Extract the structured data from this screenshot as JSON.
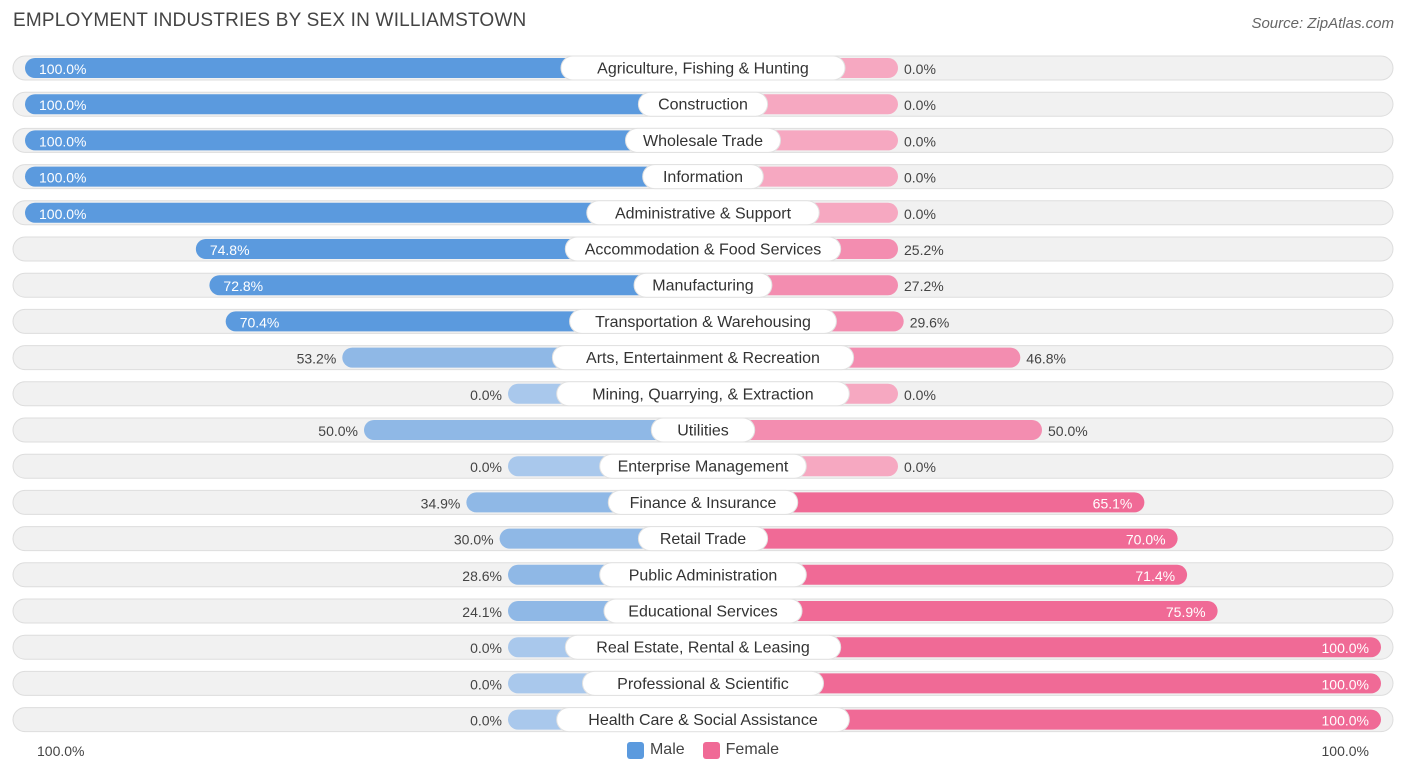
{
  "title": "EMPLOYMENT INDUSTRIES BY SEX IN WILLIAMSTOWN",
  "source": "Source: ZipAtlas.com",
  "colors": {
    "male_strong": "#5b9ade",
    "male_light": "#a9c8ec",
    "female_strong": "#f06a96",
    "female_light": "#f6a8c1",
    "row_bg": "#f1f1f1",
    "row_border": "#dddddd"
  },
  "axis": {
    "left_label": "100.0%",
    "right_label": "100.0%"
  },
  "legend": {
    "male_label": "Male",
    "female_label": "Female"
  },
  "chart_data": {
    "type": "bar",
    "orientation": "horizontal-diverging",
    "title": "EMPLOYMENT INDUSTRIES BY SEX IN WILLIAMSTOWN",
    "xlim": [
      -100,
      100
    ],
    "categories": [
      "Agriculture, Fishing & Hunting",
      "Construction",
      "Wholesale Trade",
      "Information",
      "Administrative & Support",
      "Accommodation & Food Services",
      "Manufacturing",
      "Transportation & Warehousing",
      "Arts, Entertainment & Recreation",
      "Mining, Quarrying, & Extraction",
      "Utilities",
      "Enterprise Management",
      "Finance & Insurance",
      "Retail Trade",
      "Public Administration",
      "Educational Services",
      "Real Estate, Rental & Leasing",
      "Professional & Scientific",
      "Health Care & Social Assistance"
    ],
    "series": [
      {
        "name": "Male",
        "values": [
          100.0,
          100.0,
          100.0,
          100.0,
          100.0,
          74.8,
          72.8,
          70.4,
          53.2,
          0.0,
          50.0,
          0.0,
          34.9,
          30.0,
          28.6,
          24.1,
          0.0,
          0.0,
          0.0
        ],
        "labels": [
          "100.0%",
          "100.0%",
          "100.0%",
          "100.0%",
          "100.0%",
          "74.8%",
          "72.8%",
          "70.4%",
          "53.2%",
          "0.0%",
          "50.0%",
          "0.0%",
          "34.9%",
          "30.0%",
          "28.6%",
          "24.1%",
          "0.0%",
          "0.0%",
          "0.0%"
        ]
      },
      {
        "name": "Female",
        "values": [
          0.0,
          0.0,
          0.0,
          0.0,
          0.0,
          25.2,
          27.2,
          29.6,
          46.8,
          0.0,
          50.0,
          0.0,
          65.1,
          70.0,
          71.4,
          75.9,
          100.0,
          100.0,
          100.0
        ],
        "labels": [
          "0.0%",
          "0.0%",
          "0.0%",
          "0.0%",
          "0.0%",
          "25.2%",
          "27.2%",
          "29.6%",
          "46.8%",
          "0.0%",
          "50.0%",
          "0.0%",
          "65.1%",
          "70.0%",
          "71.4%",
          "75.9%",
          "100.0%",
          "100.0%",
          "100.0%"
        ]
      }
    ],
    "legend_position": "bottom-center",
    "grid": false
  }
}
